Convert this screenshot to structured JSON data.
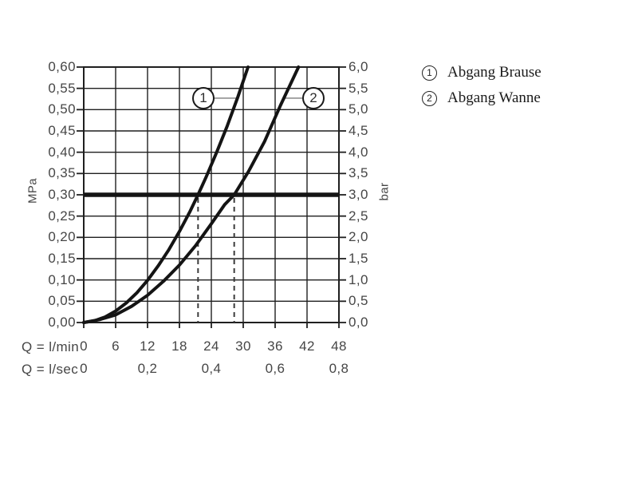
{
  "chart_data": {
    "type": "line",
    "description": "Flow rate / pressure diagram with two quadratic-like curves",
    "x_range_lmin": [
      0,
      48
    ],
    "y_range_mpa": [
      0,
      0.6
    ],
    "y_range_bar": [
      0,
      6.0
    ],
    "grid": true,
    "axis_titles": {
      "left": "MPa",
      "right": "bar",
      "x1": "Q = l/min",
      "x2": "Q = l/sec"
    },
    "y_ticks_left": [
      {
        "label": "0,60",
        "mpa": 0.6
      },
      {
        "label": "0,55",
        "mpa": 0.55
      },
      {
        "label": "0,50",
        "mpa": 0.5
      },
      {
        "label": "0,45",
        "mpa": 0.45
      },
      {
        "label": "0,40",
        "mpa": 0.4
      },
      {
        "label": "0,35",
        "mpa": 0.35
      },
      {
        "label": "0,30",
        "mpa": 0.3
      },
      {
        "label": "0,25",
        "mpa": 0.25
      },
      {
        "label": "0,20",
        "mpa": 0.2
      },
      {
        "label": "0,15",
        "mpa": 0.15
      },
      {
        "label": "0,10",
        "mpa": 0.1
      },
      {
        "label": "0,05",
        "mpa": 0.05
      },
      {
        "label": "0,00",
        "mpa": 0.0
      }
    ],
    "y_ticks_right": [
      {
        "label": "6,0",
        "bar": 6.0
      },
      {
        "label": "5,5",
        "bar": 5.5
      },
      {
        "label": "5,0",
        "bar": 5.0
      },
      {
        "label": "4,5",
        "bar": 4.5
      },
      {
        "label": "4,0",
        "bar": 4.0
      },
      {
        "label": "3,5",
        "bar": 3.5
      },
      {
        "label": "3,0",
        "bar": 3.0
      },
      {
        "label": "2,5",
        "bar": 2.5
      },
      {
        "label": "2,0",
        "bar": 2.0
      },
      {
        "label": "1,5",
        "bar": 1.5
      },
      {
        "label": "1,0",
        "bar": 1.0
      },
      {
        "label": "0,5",
        "bar": 0.5
      },
      {
        "label": "0,0",
        "bar": 0.0
      }
    ],
    "x_ticks_lmin": [
      {
        "label": "0",
        "q": 0
      },
      {
        "label": "6",
        "q": 6
      },
      {
        "label": "12",
        "q": 12
      },
      {
        "label": "18",
        "q": 18
      },
      {
        "label": "24",
        "q": 24
      },
      {
        "label": "30",
        "q": 30
      },
      {
        "label": "36",
        "q": 36
      },
      {
        "label": "42",
        "q": 42
      },
      {
        "label": "48",
        "q": 48
      }
    ],
    "x_ticks_lsec": [
      {
        "label": "0",
        "q": 0
      },
      {
        "label": "0,2",
        "q": 12
      },
      {
        "label": "0,4",
        "q": 24
      },
      {
        "label": "0,6",
        "q": 36
      },
      {
        "label": "0,8",
        "q": 48
      }
    ],
    "series": [
      {
        "symbol": "1",
        "name": "Abgang Brause",
        "points": [
          [
            0,
            0
          ],
          [
            2,
            0.004
          ],
          [
            4,
            0.013
          ],
          [
            6,
            0.027
          ],
          [
            8,
            0.046
          ],
          [
            10,
            0.07
          ],
          [
            12,
            0.099
          ],
          [
            14,
            0.133
          ],
          [
            16,
            0.171
          ],
          [
            18,
            0.214
          ],
          [
            20,
            0.261
          ],
          [
            21.5,
            0.3
          ],
          [
            23,
            0.341
          ],
          [
            25,
            0.4
          ],
          [
            27,
            0.462
          ],
          [
            29,
            0.53
          ],
          [
            30.9,
            0.6
          ]
        ]
      },
      {
        "symbol": "2",
        "name": "Abgang Wanne",
        "points": [
          [
            0,
            0
          ],
          [
            3,
            0.007
          ],
          [
            6,
            0.018
          ],
          [
            9,
            0.038
          ],
          [
            12,
            0.064
          ],
          [
            15,
            0.097
          ],
          [
            18,
            0.135
          ],
          [
            21,
            0.18
          ],
          [
            24,
            0.232
          ],
          [
            26.5,
            0.277
          ],
          [
            28.3,
            0.3
          ],
          [
            31,
            0.355
          ],
          [
            34,
            0.425
          ],
          [
            37,
            0.51
          ],
          [
            40.4,
            0.6
          ]
        ]
      }
    ],
    "reference_line": {
      "mpa": 0.3,
      "bar": 3.0
    },
    "guides_dashed_q_lmin": [
      21.5,
      28.3
    ],
    "markers": [
      {
        "symbol": "1",
        "series": 0,
        "q": 22.5,
        "mpa": 0.527
      },
      {
        "symbol": "2",
        "series": 1,
        "q": 43.2,
        "mpa": 0.527
      }
    ],
    "legend": {
      "position": "top-right",
      "items": [
        {
          "symbol": "1",
          "label": "Abgang Brause"
        },
        {
          "symbol": "2",
          "label": "Abgang Wanne"
        }
      ]
    },
    "colors": {
      "background": "#ffffff",
      "grid": "#1f1f1f",
      "curve": "#141414",
      "reference_line": "#141414",
      "dashed_guide": "#3b3b3b",
      "leader_line": "#919191",
      "tick_text": "#464646",
      "legend_text": "#1b1b1b"
    }
  }
}
